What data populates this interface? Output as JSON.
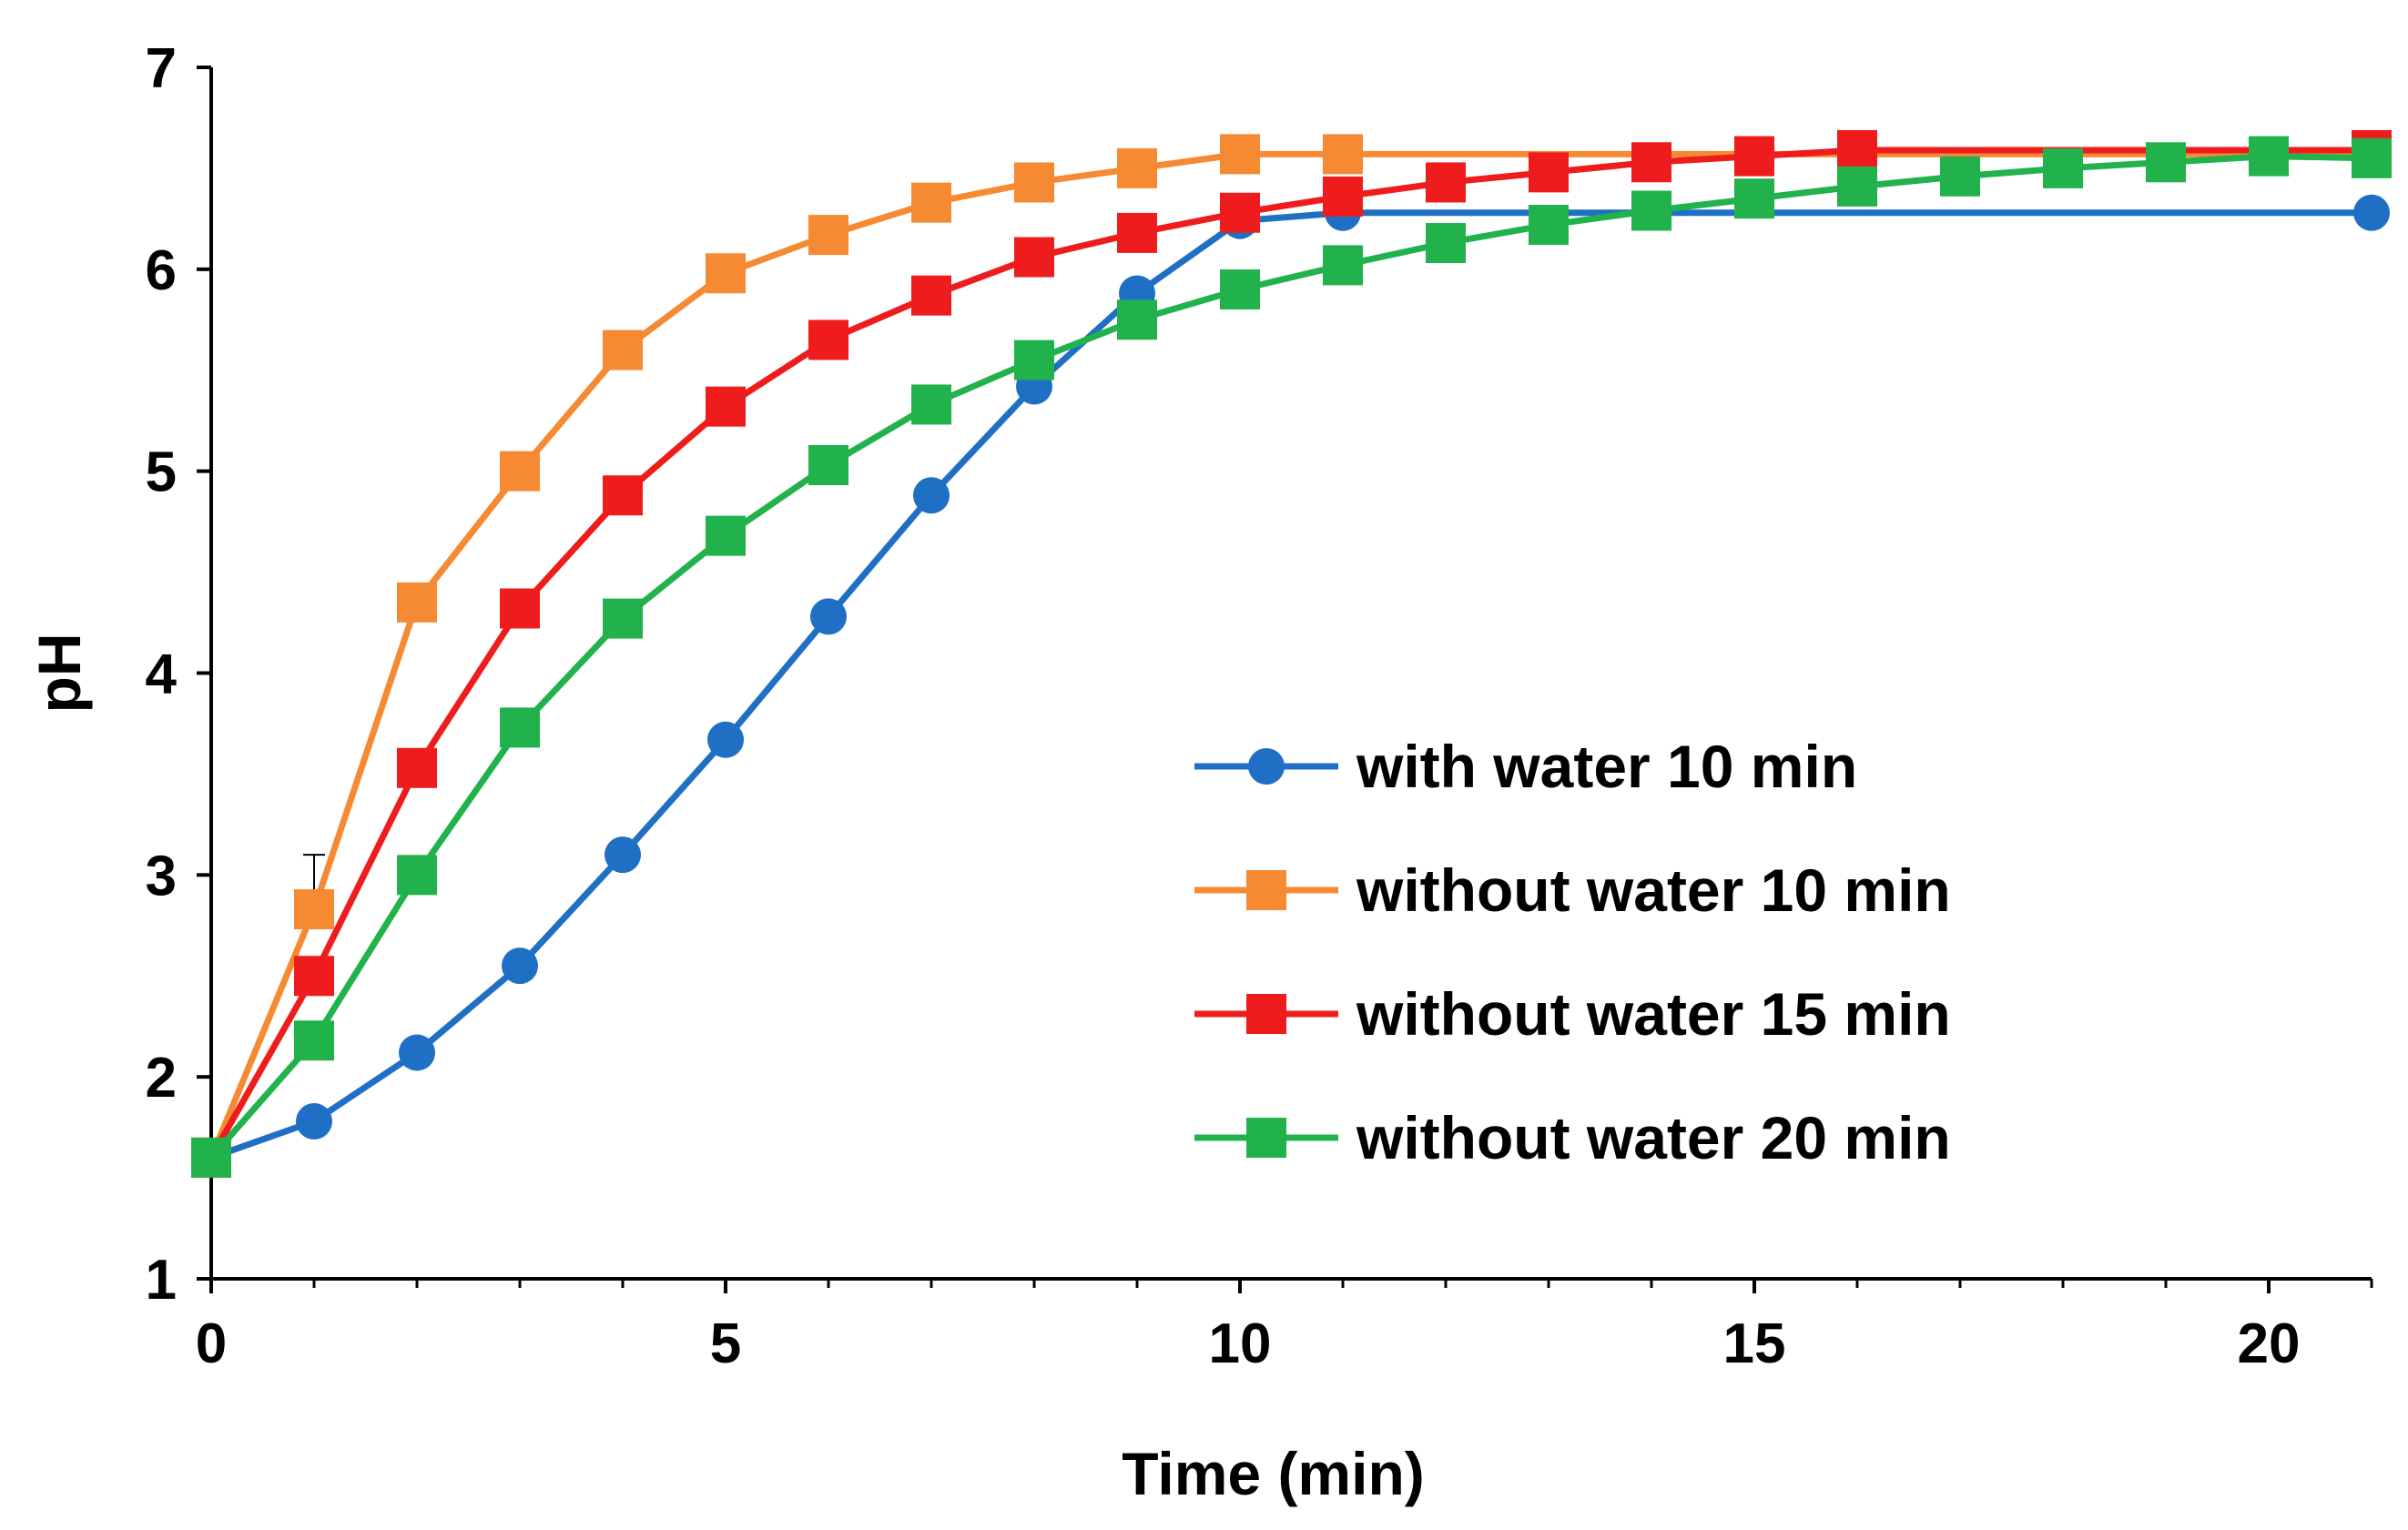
{
  "chart_data": {
    "type": "line",
    "title": "",
    "xlabel": "Time (min)",
    "ylabel": "pH",
    "xlim": [
      0,
      21
    ],
    "ylim": [
      1,
      7
    ],
    "x_ticks": [
      0,
      5,
      10,
      15,
      20
    ],
    "y_ticks": [
      1,
      2,
      3,
      4,
      5,
      6,
      7
    ],
    "x_tick_labels": [
      "0",
      "5",
      "10",
      "15",
      "20"
    ],
    "y_tick_labels": [
      "1",
      "2",
      "3",
      "4",
      "5",
      "6",
      "7"
    ],
    "grid": false,
    "legend_position": "center-right",
    "series": [
      {
        "name": "with water 10 min",
        "color": "#1f6fc5",
        "marker": "circle",
        "x": [
          0,
          1,
          2,
          3,
          4,
          5,
          6,
          7,
          8,
          9,
          10,
          11,
          21
        ],
        "y": [
          1.6,
          1.78,
          2.12,
          2.55,
          3.1,
          3.67,
          4.28,
          4.88,
          5.42,
          5.88,
          6.24,
          6.28,
          6.28
        ]
      },
      {
        "name": "without water 10 min",
        "color": "#f58a32",
        "marker": "square",
        "x": [
          0,
          1,
          2,
          3,
          4,
          5,
          6,
          7,
          8,
          9,
          10,
          11,
          21
        ],
        "y": [
          1.6,
          2.83,
          4.35,
          5.0,
          5.6,
          5.98,
          6.17,
          6.33,
          6.43,
          6.5,
          6.57,
          6.57,
          6.57
        ]
      },
      {
        "name": "without water 15 min",
        "color": "#ee1c1c",
        "marker": "square",
        "x": [
          0,
          1,
          2,
          3,
          4,
          5,
          6,
          7,
          8,
          9,
          10,
          11,
          12,
          13,
          14,
          15,
          16,
          21
        ],
        "y": [
          1.6,
          2.5,
          3.53,
          4.32,
          4.88,
          5.32,
          5.65,
          5.87,
          6.06,
          6.18,
          6.28,
          6.36,
          6.43,
          6.48,
          6.53,
          6.56,
          6.59,
          6.59
        ]
      },
      {
        "name": "without water 20 min",
        "color": "#22b24c",
        "marker": "square",
        "x": [
          0,
          1,
          2,
          3,
          4,
          5,
          6,
          7,
          8,
          9,
          10,
          11,
          12,
          13,
          14,
          15,
          16,
          17,
          18,
          19,
          20,
          21
        ],
        "y": [
          1.6,
          2.18,
          3.0,
          3.73,
          4.27,
          4.68,
          5.03,
          5.33,
          5.55,
          5.75,
          5.9,
          6.02,
          6.13,
          6.22,
          6.29,
          6.35,
          6.41,
          6.46,
          6.5,
          6.53,
          6.56,
          6.55
        ]
      }
    ],
    "error_bars": [
      {
        "series": "without water 10 min",
        "x": 1,
        "y": 2.83,
        "err": 0.27
      }
    ]
  }
}
